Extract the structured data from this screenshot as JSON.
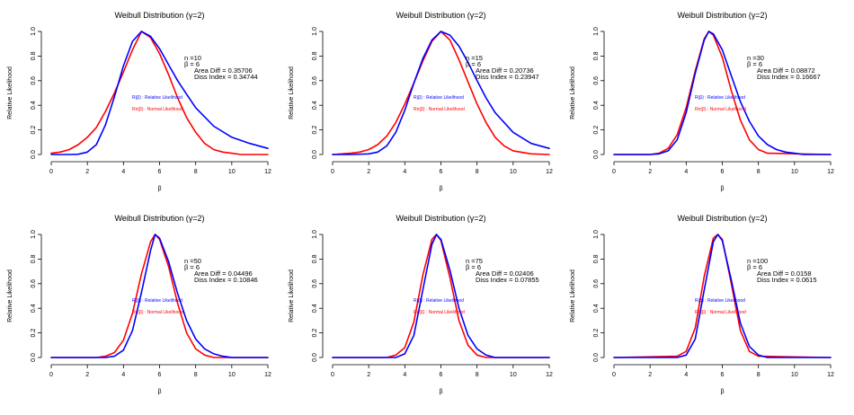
{
  "colors": {
    "relative": "#0000ff",
    "normal": "#ff0000",
    "axis": "#000000"
  },
  "chart_data": [
    {
      "type": "line",
      "title": "Weibull Distribution (γ=2)",
      "xlabel": "β",
      "ylabel": "Relative Likelihood",
      "xlim": [
        0,
        12
      ],
      "ylim": [
        0,
        1
      ],
      "xticks": [
        0,
        2,
        4,
        6,
        8,
        10,
        12
      ],
      "yticks": [
        0.0,
        0.2,
        0.4,
        0.6,
        0.8,
        1.0
      ],
      "grid": false,
      "legend_position": "center-left inside plot",
      "annotation": {
        "n": "n =10",
        "beta": "β = 6",
        "area_diff": "Area Diff = 0.35706",
        "diss_index": "Diss Index = 0.34744"
      },
      "legend": [
        "R(β) : Relative Likelihood",
        "Rn(β) : Normal Likelihood"
      ],
      "series": [
        {
          "name": "R(β) : Relative Likelihood",
          "color": "#0000ff",
          "x": [
            0,
            1,
            1.5,
            2,
            2.5,
            3,
            3.5,
            4,
            4.5,
            5,
            5.5,
            6,
            6.5,
            7,
            7.5,
            8,
            9,
            10,
            11,
            12
          ],
          "y": [
            0,
            0,
            0.002,
            0.02,
            0.08,
            0.24,
            0.47,
            0.72,
            0.92,
            1.0,
            0.96,
            0.86,
            0.73,
            0.6,
            0.49,
            0.38,
            0.23,
            0.14,
            0.09,
            0.05
          ]
        },
        {
          "name": "Rn(β) : Normal Likelihood",
          "color": "#ff0000",
          "x": [
            0,
            0.5,
            1,
            1.5,
            2,
            2.5,
            3,
            3.5,
            4,
            4.5,
            5,
            5.5,
            6,
            6.5,
            7,
            7.5,
            8,
            8.5,
            9,
            9.5,
            10,
            10.5,
            11,
            12
          ],
          "y": [
            0.01,
            0.02,
            0.04,
            0.08,
            0.14,
            0.22,
            0.35,
            0.5,
            0.67,
            0.85,
            1.0,
            0.95,
            0.82,
            0.65,
            0.46,
            0.3,
            0.18,
            0.09,
            0.04,
            0.02,
            0.01,
            0,
            0,
            0
          ]
        }
      ]
    },
    {
      "type": "line",
      "title": "Weibull Distribution (γ=2)",
      "xlabel": "β",
      "ylabel": "Relative Likelihood",
      "xlim": [
        0,
        12
      ],
      "ylim": [
        0,
        1
      ],
      "xticks": [
        0,
        2,
        4,
        6,
        8,
        10,
        12
      ],
      "yticks": [
        0.0,
        0.2,
        0.4,
        0.6,
        0.8,
        1.0
      ],
      "grid": false,
      "legend_position": "center-left inside plot",
      "annotation": {
        "n": "n =15",
        "beta": "β = 6",
        "area_diff": "Area Diff = 0.20736",
        "diss_index": "Diss Index = 0.23947"
      },
      "legend": [
        "R(β) : Relative Likelihood",
        "Rn(β) : Normal Likelihood"
      ],
      "series": [
        {
          "name": "R(β) : Relative Likelihood",
          "color": "#0000ff",
          "x": [
            0,
            1,
            2,
            2.5,
            3,
            3.5,
            4,
            4.5,
            5,
            5.5,
            6,
            6.5,
            7,
            7.5,
            8,
            8.5,
            9,
            10,
            11,
            12
          ],
          "y": [
            0,
            0,
            0.005,
            0.02,
            0.07,
            0.18,
            0.36,
            0.58,
            0.78,
            0.93,
            1.0,
            0.97,
            0.88,
            0.75,
            0.6,
            0.46,
            0.34,
            0.18,
            0.09,
            0.05
          ]
        },
        {
          "name": "Rn(β) : Normal Likelihood",
          "color": "#ff0000",
          "x": [
            0,
            1,
            1.5,
            2,
            2.5,
            3,
            3.5,
            4,
            4.5,
            5,
            5.5,
            6,
            6.5,
            7,
            7.5,
            8,
            8.5,
            9,
            9.5,
            10,
            11,
            12
          ],
          "y": [
            0,
            0.01,
            0.02,
            0.04,
            0.08,
            0.15,
            0.26,
            0.41,
            0.58,
            0.76,
            0.92,
            1.0,
            0.93,
            0.77,
            0.59,
            0.41,
            0.26,
            0.14,
            0.07,
            0.03,
            0.005,
            0
          ]
        }
      ]
    },
    {
      "type": "line",
      "title": "Weibull Distribution (γ=2)",
      "xlabel": "β",
      "ylabel": "Relative Likelihood",
      "xlim": [
        0,
        12
      ],
      "ylim": [
        0,
        1
      ],
      "xticks": [
        0,
        2,
        4,
        6,
        8,
        10,
        12
      ],
      "yticks": [
        0.0,
        0.2,
        0.4,
        0.6,
        0.8,
        1.0
      ],
      "grid": false,
      "legend_position": "center-left inside plot",
      "annotation": {
        "n": "n =30",
        "beta": "β = 6",
        "area_diff": "Area Diff = 0.08872",
        "diss_index": "Diss Index = 0.16667"
      },
      "legend": [
        "R(β) : Relative Likelihood",
        "Rn(β) : Normal Likelihood"
      ],
      "series": [
        {
          "name": "R(β) : Relative Likelihood",
          "color": "#0000ff",
          "x": [
            0,
            2,
            2.5,
            3,
            3.5,
            4,
            4.5,
            5,
            5.25,
            5.5,
            6,
            6.5,
            7,
            7.5,
            8,
            8.5,
            9,
            9.5,
            10,
            10.5,
            12
          ],
          "y": [
            0,
            0,
            0.005,
            0.03,
            0.12,
            0.34,
            0.66,
            0.93,
            1.0,
            0.98,
            0.85,
            0.64,
            0.43,
            0.27,
            0.15,
            0.08,
            0.04,
            0.02,
            0.01,
            0,
            0
          ]
        },
        {
          "name": "Rn(β) : Normal Likelihood",
          "color": "#ff0000",
          "x": [
            0,
            2,
            2.5,
            3,
            3.5,
            4,
            4.5,
            5,
            5.25,
            5.5,
            6,
            6.5,
            7,
            7.5,
            8,
            8.5,
            12
          ],
          "y": [
            0,
            0,
            0.01,
            0.05,
            0.16,
            0.38,
            0.68,
            0.94,
            1.0,
            0.97,
            0.79,
            0.52,
            0.28,
            0.12,
            0.04,
            0.01,
            0
          ]
        }
      ]
    },
    {
      "type": "line",
      "title": "Weibull Distribution (γ=2)",
      "xlabel": "β",
      "ylabel": "Relative Likelihood",
      "xlim": [
        0,
        12
      ],
      "ylim": [
        0,
        1
      ],
      "xticks": [
        0,
        2,
        4,
        6,
        8,
        10,
        12
      ],
      "yticks": [
        0.0,
        0.2,
        0.4,
        0.6,
        0.8,
        1.0
      ],
      "grid": false,
      "legend_position": "center-left inside plot",
      "annotation": {
        "n": "n =50",
        "beta": "β = 6",
        "area_diff": "Area Diff = 0.04496",
        "diss_index": "Diss Index = 0.10846"
      },
      "legend": [
        "R(β) : Relative Likelihood",
        "Rn(β) : Normal Likelihood"
      ],
      "series": [
        {
          "name": "R(β) : Relative Likelihood",
          "color": "#0000ff",
          "x": [
            0,
            3,
            3.5,
            4,
            4.5,
            5,
            5.5,
            5.75,
            6,
            6.5,
            7,
            7.5,
            8,
            8.5,
            9,
            9.5,
            10,
            12
          ],
          "y": [
            0,
            0,
            0.01,
            0.06,
            0.22,
            0.53,
            0.87,
            1.0,
            0.97,
            0.78,
            0.52,
            0.3,
            0.15,
            0.07,
            0.03,
            0.01,
            0,
            0
          ]
        },
        {
          "name": "Rn(β) : Normal Likelihood",
          "color": "#ff0000",
          "x": [
            0,
            2.5,
            3,
            3.5,
            4,
            4.5,
            5,
            5.5,
            5.75,
            6,
            6.5,
            7,
            7.5,
            8,
            8.5,
            9,
            12
          ],
          "y": [
            0,
            0,
            0.01,
            0.04,
            0.14,
            0.36,
            0.68,
            0.94,
            1.0,
            0.96,
            0.74,
            0.44,
            0.2,
            0.07,
            0.02,
            0,
            0
          ]
        }
      ]
    },
    {
      "type": "line",
      "title": "Weibull Distribution (γ=2)",
      "xlabel": "β",
      "ylabel": "Relative Likelihood",
      "xlim": [
        0,
        12
      ],
      "ylim": [
        0,
        1
      ],
      "xticks": [
        0,
        2,
        4,
        6,
        8,
        10,
        12
      ],
      "yticks": [
        0.0,
        0.2,
        0.4,
        0.6,
        0.8,
        1.0
      ],
      "grid": false,
      "legend_position": "center-left inside plot",
      "annotation": {
        "n": "n =75",
        "beta": "β = 6",
        "area_diff": "Area Diff = 0.02406",
        "diss_index": "Diss Index = 0.07855"
      },
      "legend": [
        "R(β) : Relative Likelihood",
        "Rn(β) : Normal Likelihood"
      ],
      "series": [
        {
          "name": "R(β) : Relative Likelihood",
          "color": "#0000ff",
          "x": [
            0,
            3.5,
            4,
            4.5,
            5,
            5.5,
            5.75,
            6,
            6.5,
            7,
            7.5,
            8,
            8.5,
            9,
            12
          ],
          "y": [
            0,
            0,
            0.03,
            0.18,
            0.55,
            0.92,
            1.0,
            0.96,
            0.71,
            0.4,
            0.18,
            0.07,
            0.02,
            0,
            0
          ]
        },
        {
          "name": "Rn(β) : Normal Likelihood",
          "color": "#ff0000",
          "x": [
            0,
            3,
            3.5,
            4,
            4.5,
            5,
            5.5,
            5.75,
            6,
            6.5,
            7,
            7.5,
            8,
            8.5,
            12
          ],
          "y": [
            0,
            0,
            0.02,
            0.08,
            0.29,
            0.67,
            0.96,
            1.0,
            0.95,
            0.65,
            0.3,
            0.1,
            0.02,
            0,
            0
          ]
        }
      ]
    },
    {
      "type": "line",
      "title": "Weibull Distribution (γ=2)",
      "xlabel": "β",
      "ylabel": "Relative Likelihood",
      "xlim": [
        0,
        12
      ],
      "ylim": [
        0,
        1
      ],
      "xticks": [
        0,
        2,
        4,
        6,
        8,
        10,
        12
      ],
      "yticks": [
        0.0,
        0.2,
        0.4,
        0.6,
        0.8,
        1.0
      ],
      "grid": false,
      "legend_position": "center-left inside plot",
      "annotation": {
        "n": "n =100",
        "beta": "β = 6",
        "area_diff": "Area Diff = 0.0158",
        "diss_index": "Diss Index = 0.0615"
      },
      "legend": [
        "R(β) : Relative Likelihood",
        "Rn(β) : Normal Likelihood"
      ],
      "series": [
        {
          "name": "R(β) : Relative Likelihood",
          "color": "#0000ff",
          "x": [
            0,
            3.5,
            4,
            4.5,
            5,
            5.5,
            5.75,
            6,
            6.5,
            7,
            7.5,
            8,
            8.5,
            12
          ],
          "y": [
            0,
            0,
            0.02,
            0.15,
            0.55,
            0.94,
            1.0,
            0.95,
            0.63,
            0.28,
            0.09,
            0.02,
            0,
            0
          ]
        },
        {
          "name": "Rn(β) : Normal Likelihood",
          "color": "#ff0000",
          "x": [
            0,
            3.5,
            4,
            4.5,
            5,
            5.5,
            5.75,
            6,
            6.5,
            7,
            7.5,
            8,
            12
          ],
          "y": [
            0,
            0.01,
            0.05,
            0.24,
            0.66,
            0.97,
            1.0,
            0.96,
            0.6,
            0.22,
            0.05,
            0.01,
            0
          ]
        }
      ]
    }
  ]
}
